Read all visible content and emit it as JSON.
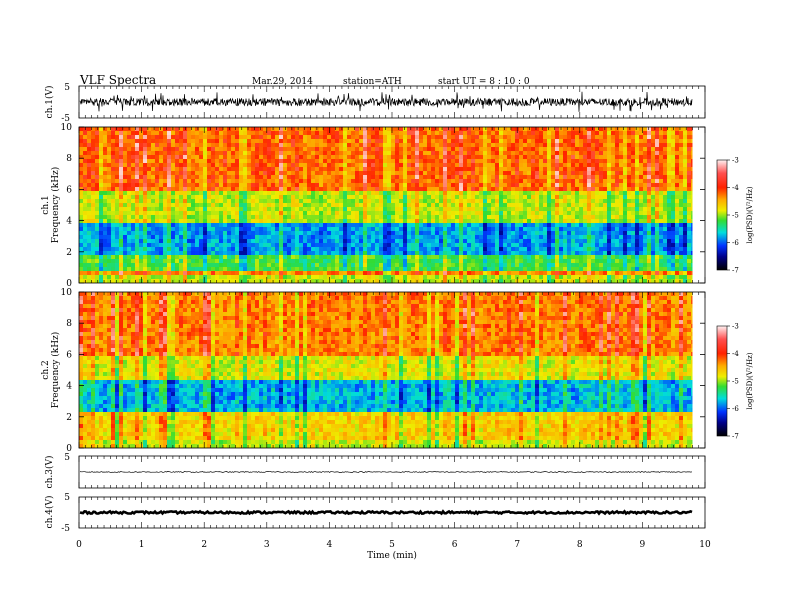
{
  "header": {
    "title": "VLF  Spectra",
    "date": "Mar.29, 2014",
    "station": "station=ATH",
    "start": "start  UT  =    8  : 10 : 0"
  },
  "chart_data": [
    {
      "type": "line",
      "name": "ch1-waveform",
      "ylabel": "ch.1(V)",
      "ylim": [
        -5,
        5
      ],
      "yticks": [
        "5",
        "-5"
      ],
      "xlim": [
        0,
        9.8
      ],
      "amplitude_typical": 1.2,
      "amplitude_peak": 3.2
    },
    {
      "type": "heatmap",
      "name": "ch1-spectrogram",
      "ylabel_channel": "ch.1",
      "ylabel": "Frequency  (kHz)",
      "ylim": [
        0,
        10
      ],
      "yticks": [
        "0",
        "2",
        "4",
        "6",
        "8",
        "10"
      ],
      "xlim": [
        0,
        9.8
      ],
      "bands": [
        {
          "from": 0,
          "to": 0.4,
          "log_psd": -4.6
        },
        {
          "from": 0.4,
          "to": 0.75,
          "log_psd": -3.9
        },
        {
          "from": 0.75,
          "to": 1.8,
          "log_psd": -5.0
        },
        {
          "from": 1.8,
          "to": 3.9,
          "log_psd": -5.7
        },
        {
          "from": 3.9,
          "to": 5.8,
          "log_psd": -4.6
        },
        {
          "from": 5.8,
          "to": 10,
          "log_psd": -3.8
        }
      ],
      "colorbar": {
        "label": "log(PSD)(V²/Hz)",
        "range": [
          -7,
          -3
        ],
        "ticks": [
          "-3",
          "-4",
          "-5",
          "-6",
          "-7"
        ]
      }
    },
    {
      "type": "heatmap",
      "name": "ch2-spectrogram",
      "ylabel_channel": "ch.2",
      "ylabel": "Frequency  (kHz)",
      "ylim": [
        0,
        10
      ],
      "yticks": [
        "0",
        "2",
        "4",
        "6",
        "8",
        "10"
      ],
      "xlim": [
        0,
        9.8
      ],
      "bands": [
        {
          "from": 0,
          "to": 0.4,
          "log_psd": -4.6
        },
        {
          "from": 0.4,
          "to": 2.4,
          "log_psd": -4.3
        },
        {
          "from": 2.4,
          "to": 4.3,
          "log_psd": -5.6
        },
        {
          "from": 4.3,
          "to": 6.0,
          "log_psd": -4.5
        },
        {
          "from": 6.0,
          "to": 10,
          "log_psd": -3.9
        }
      ],
      "colorbar": {
        "label": "log(PSD)(V²/Hz)",
        "range": [
          -7,
          -3
        ],
        "ticks": [
          "-3",
          "-4",
          "-5",
          "-6",
          "-7"
        ]
      }
    },
    {
      "type": "line",
      "name": "ch3-waveform",
      "ylabel": "ch.3(V)",
      "ylim": [
        -5,
        5
      ],
      "yticks": [
        "5"
      ],
      "xlim": [
        0,
        9.8
      ],
      "amplitude_typical": 0.15
    },
    {
      "type": "line",
      "name": "ch4-waveform",
      "ylabel": "ch.4(V)",
      "ylim": [
        -5,
        5
      ],
      "yticks": [
        "5",
        "-5"
      ],
      "xlim": [
        0,
        9.8
      ],
      "amplitude_typical": 0.35
    }
  ],
  "xaxis": {
    "label": "Time  (min)",
    "range": [
      0,
      10
    ],
    "ticks": [
      "0",
      "1",
      "2",
      "3",
      "4",
      "5",
      "6",
      "7",
      "8",
      "9",
      "10"
    ]
  }
}
